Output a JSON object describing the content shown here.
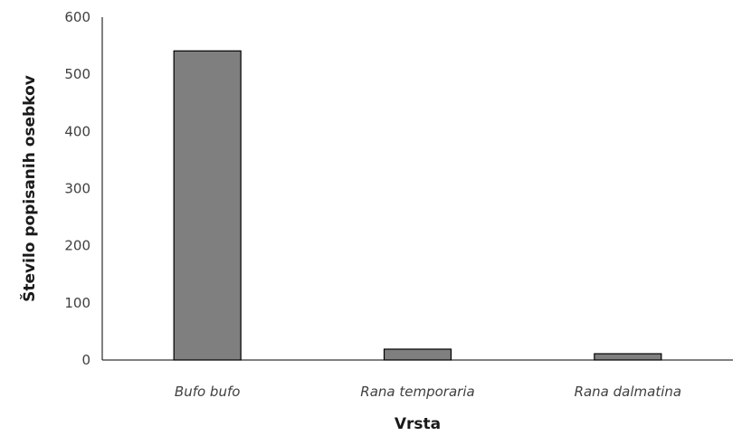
{
  "chart_data": {
    "type": "bar",
    "title": "",
    "xlabel": "Vrsta",
    "ylabel": "Število popisanih osebkov",
    "categories": [
      "Bufo bufo",
      "Rana temporaria",
      "Rana dalmatina"
    ],
    "series": [
      {
        "values": [
          541,
          19,
          11
        ]
      }
    ],
    "ylim": [
      0,
      600
    ],
    "yticks": [
      0,
      100,
      200,
      300,
      400,
      500,
      600
    ],
    "grid": false,
    "legend": "none",
    "bar_color": "#7f7f7f",
    "bar_edge_color": "#000000",
    "category_label_style": "italic"
  }
}
